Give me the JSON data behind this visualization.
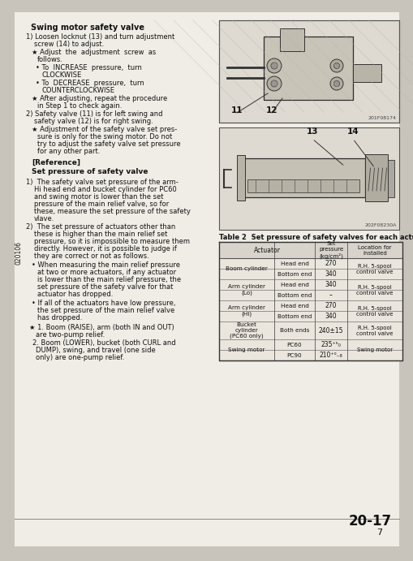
{
  "bg_color": "#c8c4bc",
  "page_color": "#f0ede6",
  "text_color": "#111111",
  "sidebar_text": "020106",
  "page_num": "20-17",
  "page_sub": "7",
  "table_title": "Table 2  Set pressure of safety valves for each actuator",
  "img1_label_bottom": "201F08174",
  "img2_label_bottom": "202F08230A",
  "swing_valve_title": "Swing motor safety valve",
  "ref_title": "[Reference]",
  "ref_sub": "Set pressure of safety valve"
}
